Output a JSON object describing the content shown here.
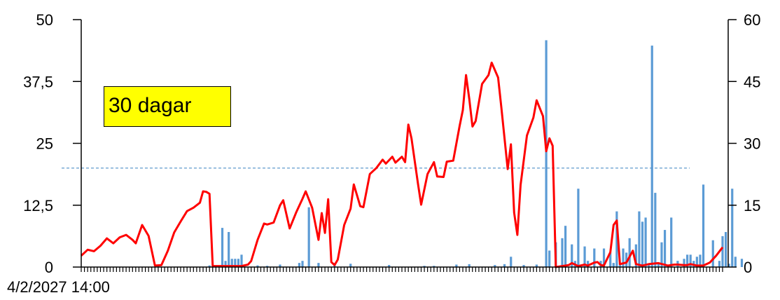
{
  "chart_data": {
    "type": "bar+line",
    "left_axis": {
      "ylim": [
        0,
        50
      ],
      "ticks": [
        "0",
        "12,5",
        "25",
        "37,5",
        "50"
      ],
      "tick_values": [
        0,
        12.5,
        25,
        37.5,
        50
      ]
    },
    "right_axis": {
      "ylim": [
        0,
        60
      ],
      "ticks": [
        "0",
        "15",
        "30",
        "45",
        "60"
      ],
      "tick_values": [
        0,
        15,
        30,
        45,
        60
      ]
    },
    "x_start_label": "4/2/2027 14:00",
    "n_points": 200,
    "annotation": "30 dagar",
    "reference_line": {
      "value": 20,
      "axis": "left",
      "color": "#4f8fc9",
      "style": "dashed"
    },
    "line_series": {
      "color": "#ff0000",
      "axis": "left",
      "keypoints": [
        [
          0,
          2.3
        ],
        [
          2,
          3.5
        ],
        [
          4,
          3.2
        ],
        [
          6,
          4.3
        ],
        [
          8,
          5.8
        ],
        [
          10,
          4.8
        ],
        [
          12,
          6.0
        ],
        [
          14,
          6.5
        ],
        [
          16,
          5.5
        ],
        [
          17,
          4.8
        ],
        [
          19,
          8.5
        ],
        [
          21,
          6.3
        ],
        [
          23,
          0.3
        ],
        [
          25,
          0.4
        ],
        [
          27,
          3.3
        ],
        [
          29,
          7.0
        ],
        [
          31,
          9.2
        ],
        [
          33,
          11.3
        ],
        [
          35,
          12.0
        ],
        [
          37,
          13.0
        ],
        [
          38,
          15.3
        ],
        [
          39,
          15.2
        ],
        [
          40,
          14.8
        ],
        [
          41,
          0.2
        ],
        [
          50,
          0.2
        ],
        [
          52,
          0.5
        ],
        [
          53,
          1.2
        ],
        [
          55,
          5.5
        ],
        [
          57,
          8.8
        ],
        [
          58,
          8.6
        ],
        [
          60,
          9.0
        ],
        [
          62,
          12.5
        ],
        [
          63,
          13.5
        ],
        [
          65,
          7.8
        ],
        [
          67,
          11.0
        ],
        [
          69,
          13.8
        ],
        [
          70,
          15.3
        ],
        [
          72,
          12.0
        ],
        [
          74,
          5.5
        ],
        [
          75,
          10.9
        ],
        [
          76,
          6.9
        ],
        [
          77,
          13.7
        ],
        [
          78,
          1.0
        ],
        [
          79,
          0.4
        ],
        [
          80,
          1.5
        ],
        [
          82,
          8.5
        ],
        [
          84,
          11.8
        ],
        [
          85,
          16.7
        ],
        [
          87,
          12.3
        ],
        [
          88,
          12.1
        ],
        [
          90,
          18.8
        ],
        [
          92,
          20.0
        ],
        [
          94,
          21.7
        ],
        [
          95,
          20.9
        ],
        [
          97,
          22.3
        ],
        [
          98,
          21.1
        ],
        [
          100,
          22.3
        ],
        [
          101,
          21.2
        ],
        [
          102,
          28.8
        ],
        [
          103,
          26.0
        ],
        [
          105,
          16.9
        ],
        [
          106,
          12.6
        ],
        [
          108,
          18.8
        ],
        [
          110,
          21.2
        ],
        [
          111,
          18.3
        ],
        [
          113,
          18.2
        ],
        [
          114,
          21.3
        ],
        [
          116,
          21.5
        ],
        [
          118,
          28.5
        ],
        [
          119,
          31.7
        ],
        [
          120,
          38.8
        ],
        [
          121,
          34.0
        ],
        [
          122,
          28.4
        ],
        [
          123,
          29.5
        ],
        [
          125,
          37.0
        ],
        [
          127,
          38.8
        ],
        [
          128,
          41.3
        ],
        [
          130,
          38.3
        ],
        [
          131,
          32.3
        ],
        [
          133,
          19.8
        ],
        [
          134,
          24.8
        ],
        [
          135,
          11.0
        ],
        [
          136,
          6.5
        ],
        [
          137,
          16.6
        ],
        [
          139,
          26.6
        ],
        [
          141,
          30.2
        ],
        [
          142,
          33.7
        ],
        [
          144,
          30.5
        ],
        [
          145,
          23.4
        ],
        [
          146,
          26.0
        ],
        [
          147,
          24.5
        ],
        [
          148,
          0.0
        ],
        [
          150,
          0.2
        ],
        [
          152,
          0.4
        ],
        [
          153,
          0.8
        ],
        [
          155,
          0.2
        ],
        [
          157,
          0.5
        ],
        [
          158,
          0.3
        ],
        [
          160,
          0.9
        ],
        [
          161,
          1.0
        ],
        [
          162,
          0.4
        ],
        [
          163,
          0.3
        ],
        [
          165,
          3.0
        ],
        [
          166,
          8.5
        ],
        [
          167,
          9.4
        ],
        [
          168,
          0.6
        ],
        [
          170,
          0.9
        ],
        [
          172,
          3.3
        ],
        [
          173,
          0.6
        ],
        [
          175,
          0.3
        ],
        [
          177,
          0.6
        ],
        [
          180,
          0.8
        ],
        [
          183,
          0.3
        ],
        [
          185,
          0.5
        ],
        [
          186,
          0.5
        ],
        [
          188,
          0.4
        ],
        [
          189,
          0.4
        ],
        [
          190,
          0.6
        ],
        [
          192,
          0.3
        ],
        [
          194,
          0.3
        ],
        [
          196,
          0.9
        ],
        [
          198,
          2.3
        ],
        [
          200,
          4.0
        ]
      ]
    },
    "bar_series": {
      "color": "#5b9bd5",
      "axis": "right",
      "bars": [
        [
          24,
          0.4
        ],
        [
          40,
          0.4
        ],
        [
          44,
          9.5
        ],
        [
          45,
          1.5
        ],
        [
          46,
          8.5
        ],
        [
          47,
          2.0
        ],
        [
          48,
          2.0
        ],
        [
          49,
          2.0
        ],
        [
          50,
          3.0
        ],
        [
          55,
          0.4
        ],
        [
          58,
          0.3
        ],
        [
          62,
          0.6
        ],
        [
          68,
          1.0
        ],
        [
          69,
          1.5
        ],
        [
          71,
          14.5
        ],
        [
          74,
          1.0
        ],
        [
          79,
          1.0
        ],
        [
          84,
          0.8
        ],
        [
          96,
          0.5
        ],
        [
          107,
          0.3
        ],
        [
          110,
          0.3
        ],
        [
          117,
          0.6
        ],
        [
          121,
          0.7
        ],
        [
          129,
          0.5
        ],
        [
          132,
          0.7
        ],
        [
          134,
          2.5
        ],
        [
          138,
          0.5
        ],
        [
          142,
          0.6
        ],
        [
          145,
          55.0
        ],
        [
          146,
          4.0
        ],
        [
          148,
          6.0
        ],
        [
          150,
          7.0
        ],
        [
          151,
          10.0
        ],
        [
          153,
          5.5
        ],
        [
          154,
          1.5
        ],
        [
          155,
          19.0
        ],
        [
          157,
          5.0
        ],
        [
          158,
          1.5
        ],
        [
          160,
          4.5
        ],
        [
          162,
          1.5
        ],
        [
          163,
          4.5
        ],
        [
          165,
          3.5
        ],
        [
          166,
          1.0
        ],
        [
          167,
          13.5
        ],
        [
          168,
          1.0
        ],
        [
          169,
          4.5
        ],
        [
          170,
          3.5
        ],
        [
          171,
          7.0
        ],
        [
          173,
          5.5
        ],
        [
          174,
          13.5
        ],
        [
          175,
          11.0
        ],
        [
          176,
          12.0
        ],
        [
          177,
          0.6
        ],
        [
          178,
          53.7
        ],
        [
          179,
          18.0
        ],
        [
          180,
          1.0
        ],
        [
          181,
          6.0
        ],
        [
          182,
          9.0
        ],
        [
          183,
          0.5
        ],
        [
          184,
          12.0
        ],
        [
          186,
          1.5
        ],
        [
          188,
          2.0
        ],
        [
          189,
          3.0
        ],
        [
          190,
          3.0
        ],
        [
          191,
          1.5
        ],
        [
          192,
          2.5
        ],
        [
          193,
          3.0
        ],
        [
          194,
          20.0
        ],
        [
          197,
          6.5
        ],
        [
          199,
          1.5
        ],
        [
          200,
          7.5
        ],
        [
          201,
          8.5
        ],
        [
          202,
          0.8
        ],
        [
          203,
          19.0
        ],
        [
          204,
          2.5
        ],
        [
          206,
          2.0
        ]
      ]
    }
  }
}
